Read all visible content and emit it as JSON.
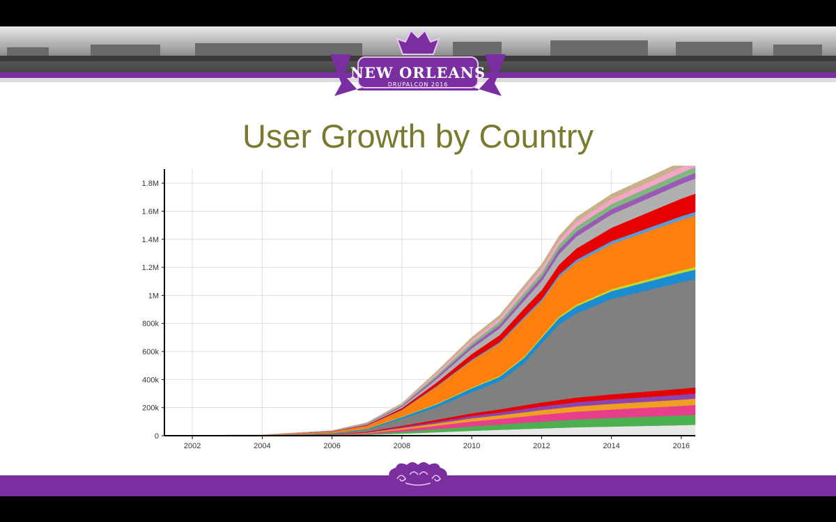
{
  "banner": {
    "city_label": "NEW ORLEANS",
    "event_label": "DRUPALCON 2016"
  },
  "slide_title": "User Growth by Country",
  "colors": {
    "purple": "#7a2ea0",
    "title": "#7a7a2e"
  },
  "chart_data": {
    "type": "area",
    "stacked": true,
    "title": "User Growth by Country",
    "x_ticks": [
      "2002",
      "2004",
      "2006",
      "2008",
      "2010",
      "2012",
      "2014",
      "2016"
    ],
    "y_ticks": [
      "0",
      "200k",
      "400k",
      "600k",
      "800k",
      "1M",
      "1.2M",
      "1.6M",
      "1.8M",
      "1.4M"
    ],
    "y_tick_values": [
      0,
      200000,
      400000,
      600000,
      800000,
      1000000,
      1200000,
      1600000,
      1800000,
      1400000
    ],
    "xlim": [
      2001.2,
      2016.4
    ],
    "ylim": [
      0,
      1900000
    ],
    "grid": true,
    "x": [
      2001.2,
      2004,
      2006,
      2007,
      2008,
      2009,
      2010,
      2010.8,
      2011.5,
      2012,
      2012.5,
      2013,
      2014,
      2015,
      2016,
      2016.4
    ],
    "series": [
      {
        "color": "#e8e8e8",
        "values": [
          0,
          400,
          2000,
          6000,
          15000,
          25000,
          35000,
          42000,
          48000,
          52000,
          56000,
          60000,
          65000,
          70000,
          75000,
          78000
        ]
      },
      {
        "color": "#4caf50",
        "values": [
          0,
          300,
          2000,
          6000,
          14000,
          22000,
          32000,
          38000,
          44000,
          48000,
          52000,
          56000,
          62000,
          66000,
          70000,
          72000
        ]
      },
      {
        "color": "#e83e8c",
        "values": [
          0,
          300,
          2000,
          6000,
          15000,
          25000,
          35000,
          40000,
          45000,
          50000,
          53000,
          56000,
          60000,
          64000,
          68000,
          70000
        ]
      },
      {
        "color": "#f0a020",
        "values": [
          0,
          200,
          1000,
          4000,
          10000,
          16000,
          22000,
          26000,
          30000,
          33000,
          35000,
          37000,
          40000,
          42000,
          44000,
          45000
        ]
      },
      {
        "color": "#8e44ad",
        "values": [
          0,
          200,
          1000,
          3000,
          8000,
          12000,
          17000,
          20000,
          24000,
          26000,
          28000,
          30000,
          32000,
          34000,
          36000,
          37000
        ]
      },
      {
        "color": "#e60000",
        "values": [
          0,
          300,
          1000,
          4000,
          9000,
          14000,
          19000,
          22000,
          26000,
          28000,
          30000,
          33000,
          36000,
          39000,
          42000,
          43000
        ]
      },
      {
        "color": "#808080",
        "values": [
          0,
          1500,
          8000,
          15000,
          50000,
          90000,
          150000,
          200000,
          300000,
          420000,
          540000,
          600000,
          680000,
          720000,
          760000,
          770000
        ]
      },
      {
        "color": "#1a8ccf",
        "values": [
          0,
          300,
          2000,
          5000,
          12000,
          20000,
          28000,
          32000,
          38000,
          40000,
          45000,
          50000,
          55000,
          60000,
          65000,
          68000
        ]
      },
      {
        "color": "#c0d830",
        "values": [
          0,
          200,
          1000,
          2000,
          3000,
          5000,
          6000,
          7000,
          9000,
          10000,
          12000,
          13000,
          15000,
          17000,
          19000,
          20000
        ]
      },
      {
        "color": "#ff7f0e",
        "values": [
          0,
          1000,
          8000,
          20000,
          45000,
          120000,
          190000,
          230000,
          270000,
          250000,
          280000,
          300000,
          320000,
          340000,
          360000,
          365000
        ]
      },
      {
        "color": "#5b9bd5",
        "values": [
          0,
          200,
          1000,
          2000,
          4000,
          6000,
          8000,
          10000,
          13000,
          15000,
          18000,
          20000,
          22000,
          24000,
          26000,
          27000
        ]
      },
      {
        "color": "#e60000",
        "values": [
          0,
          300,
          2000,
          5000,
          12000,
          25000,
          40000,
          50000,
          60000,
          65000,
          70000,
          80000,
          95000,
          110000,
          125000,
          130000
        ]
      },
      {
        "color": "#b0b0b0",
        "values": [
          0,
          500,
          2000,
          5000,
          10000,
          25000,
          40000,
          48000,
          55000,
          65000,
          75000,
          85000,
          95000,
          100000,
          105000,
          108000
        ]
      },
      {
        "color": "#9b59b6",
        "values": [
          0,
          200,
          1000,
          3000,
          7000,
          14000,
          20000,
          24000,
          28000,
          30000,
          33000,
          35000,
          37000,
          38000,
          39000,
          40000
        ]
      },
      {
        "color": "#7fb77e",
        "values": [
          0,
          200,
          1000,
          3000,
          7000,
          14000,
          20000,
          24000,
          28000,
          30000,
          33000,
          35000,
          37000,
          38000,
          40000,
          42000
        ]
      },
      {
        "color": "#f3a6c8",
        "values": [
          0,
          200,
          1000,
          3000,
          6000,
          14000,
          20000,
          24000,
          28000,
          30000,
          33000,
          35000,
          36000,
          38000,
          40000,
          41000
        ]
      },
      {
        "color": "#c8b08a",
        "values": [
          0,
          200,
          1000,
          2000,
          5000,
          13000,
          20000,
          23000,
          27000,
          29000,
          31000,
          33000,
          35000,
          36000,
          37000,
          38000
        ]
      }
    ]
  }
}
